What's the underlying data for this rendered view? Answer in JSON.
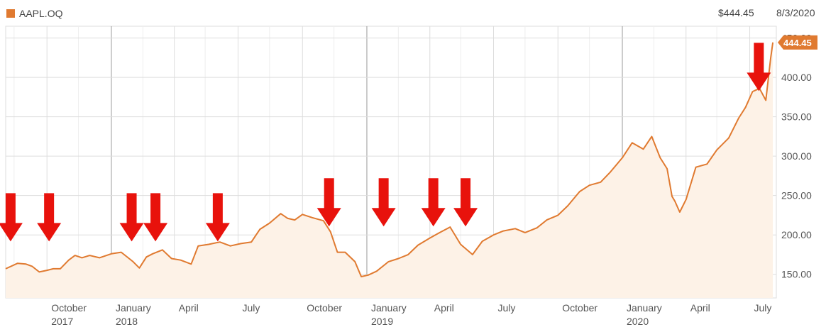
{
  "header": {
    "series_label": "AAPL.OQ",
    "last_price": "$444.45",
    "last_date": "8/3/2020"
  },
  "colors": {
    "series": "#e07a30",
    "fill": "#fdf2e7",
    "arrow": "#e8120c",
    "grid": "#dddddd",
    "year_grid": "#999999"
  },
  "icons": {
    "legend": "orange-square-icon",
    "price_tag": "price-tag-icon",
    "annotation": "red-down-arrow-icon"
  },
  "chart_data": {
    "type": "area",
    "title": "",
    "xlabel": "",
    "ylabel": "",
    "ylim": [
      120,
      465
    ],
    "xlim": [
      "2017-08-03",
      "2020-08-08"
    ],
    "grid": true,
    "y_ticks": [
      "150.00",
      "200.00",
      "250.00",
      "300.00",
      "350.00",
      "400.00",
      "450.00"
    ],
    "x_ticks": [
      {
        "date": "2017-10-01",
        "label": "October",
        "year": "2017"
      },
      {
        "date": "2018-01-01",
        "label": "January",
        "year": "2018"
      },
      {
        "date": "2018-04-01",
        "label": "April",
        "year": ""
      },
      {
        "date": "2018-07-01",
        "label": "July",
        "year": ""
      },
      {
        "date": "2018-10-01",
        "label": "October",
        "year": ""
      },
      {
        "date": "2019-01-01",
        "label": "January",
        "year": "2019"
      },
      {
        "date": "2019-04-01",
        "label": "April",
        "year": ""
      },
      {
        "date": "2019-07-01",
        "label": "July",
        "year": ""
      },
      {
        "date": "2019-10-01",
        "label": "October",
        "year": ""
      },
      {
        "date": "2020-01-01",
        "label": "January",
        "year": "2020"
      },
      {
        "date": "2020-04-01",
        "label": "April",
        "year": ""
      },
      {
        "date": "2020-07-01",
        "label": "July",
        "year": ""
      }
    ],
    "price_label": "444.45",
    "series": [
      {
        "name": "AAPL.OQ",
        "points": [
          [
            "2017-08-03",
            157
          ],
          [
            "2017-08-20",
            164
          ],
          [
            "2017-09-01",
            163
          ],
          [
            "2017-09-10",
            160
          ],
          [
            "2017-09-20",
            153
          ],
          [
            "2017-10-01",
            155
          ],
          [
            "2017-10-10",
            157
          ],
          [
            "2017-10-20",
            157
          ],
          [
            "2017-11-01",
            168
          ],
          [
            "2017-11-10",
            174
          ],
          [
            "2017-11-20",
            171
          ],
          [
            "2017-12-01",
            174
          ],
          [
            "2017-12-15",
            171
          ],
          [
            "2018-01-01",
            176
          ],
          [
            "2018-01-15",
            178
          ],
          [
            "2018-02-01",
            166
          ],
          [
            "2018-02-10",
            158
          ],
          [
            "2018-02-20",
            172
          ],
          [
            "2018-03-01",
            176
          ],
          [
            "2018-03-15",
            181
          ],
          [
            "2018-03-28",
            170
          ],
          [
            "2018-04-10",
            168
          ],
          [
            "2018-04-25",
            163
          ],
          [
            "2018-05-05",
            186
          ],
          [
            "2018-05-20",
            188
          ],
          [
            "2018-06-05",
            191
          ],
          [
            "2018-06-20",
            186
          ],
          [
            "2018-07-05",
            189
          ],
          [
            "2018-07-20",
            191
          ],
          [
            "2018-08-01",
            207
          ],
          [
            "2018-08-15",
            215
          ],
          [
            "2018-08-31",
            227
          ],
          [
            "2018-09-10",
            221
          ],
          [
            "2018-09-20",
            219
          ],
          [
            "2018-10-01",
            226
          ],
          [
            "2018-10-15",
            222
          ],
          [
            "2018-10-31",
            218
          ],
          [
            "2018-11-10",
            204
          ],
          [
            "2018-11-20",
            178
          ],
          [
            "2018-12-01",
            178
          ],
          [
            "2018-12-15",
            166
          ],
          [
            "2018-12-24",
            147
          ],
          [
            "2019-01-03",
            149
          ],
          [
            "2019-01-15",
            154
          ],
          [
            "2019-02-01",
            166
          ],
          [
            "2019-02-15",
            170
          ],
          [
            "2019-03-01",
            175
          ],
          [
            "2019-03-15",
            187
          ],
          [
            "2019-04-01",
            196
          ],
          [
            "2019-04-15",
            203
          ],
          [
            "2019-04-30",
            210
          ],
          [
            "2019-05-15",
            188
          ],
          [
            "2019-06-01",
            175
          ],
          [
            "2019-06-15",
            192
          ],
          [
            "2019-07-01",
            200
          ],
          [
            "2019-07-15",
            205
          ],
          [
            "2019-08-01",
            208
          ],
          [
            "2019-08-15",
            203
          ],
          [
            "2019-09-01",
            209
          ],
          [
            "2019-09-15",
            219
          ],
          [
            "2019-10-01",
            225
          ],
          [
            "2019-10-15",
            237
          ],
          [
            "2019-11-01",
            255
          ],
          [
            "2019-11-15",
            263
          ],
          [
            "2019-12-01",
            267
          ],
          [
            "2019-12-15",
            280
          ],
          [
            "2020-01-01",
            298
          ],
          [
            "2020-01-15",
            317
          ],
          [
            "2020-01-31",
            309
          ],
          [
            "2020-02-12",
            325
          ],
          [
            "2020-02-24",
            298
          ],
          [
            "2020-03-05",
            284
          ],
          [
            "2020-03-12",
            249
          ],
          [
            "2020-03-16",
            243
          ],
          [
            "2020-03-23",
            229
          ],
          [
            "2020-04-01",
            245
          ],
          [
            "2020-04-15",
            286
          ],
          [
            "2020-05-01",
            290
          ],
          [
            "2020-05-15",
            308
          ],
          [
            "2020-06-01",
            323
          ],
          [
            "2020-06-15",
            348
          ],
          [
            "2020-06-25",
            362
          ],
          [
            "2020-07-05",
            382
          ],
          [
            "2020-07-15",
            386
          ],
          [
            "2020-07-24",
            371
          ],
          [
            "2020-07-31",
            425
          ],
          [
            "2020-08-03",
            444.45
          ]
        ]
      }
    ],
    "annotations": [
      {
        "type": "down-arrow",
        "date": "2017-08-10",
        "value": 253
      },
      {
        "type": "down-arrow",
        "date": "2017-10-04",
        "value": 253
      },
      {
        "type": "down-arrow",
        "date": "2018-01-30",
        "value": 253
      },
      {
        "type": "down-arrow",
        "date": "2018-03-05",
        "value": 253
      },
      {
        "type": "down-arrow",
        "date": "2018-06-02",
        "value": 253
      },
      {
        "type": "down-arrow",
        "date": "2018-11-08",
        "value": 272
      },
      {
        "type": "down-arrow",
        "date": "2019-01-25",
        "value": 272
      },
      {
        "type": "down-arrow",
        "date": "2019-04-06",
        "value": 272
      },
      {
        "type": "down-arrow",
        "date": "2019-05-22",
        "value": 272
      },
      {
        "type": "down-arrow",
        "date": "2020-07-14",
        "value": 444
      }
    ]
  }
}
